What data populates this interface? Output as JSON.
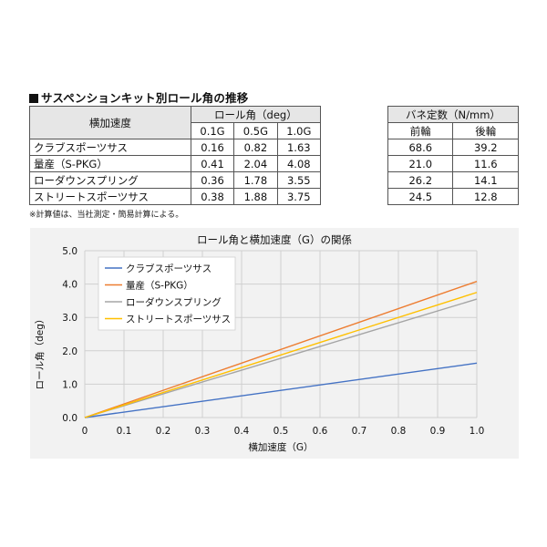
{
  "page": {
    "title": "サスペンションキット別ロール角の推移",
    "note": "※計算値は、当社測定・簡易計算による。"
  },
  "roll_table": {
    "corner_header": "横加速度",
    "group_header": "ロール角（deg）",
    "columns": [
      "0.1G",
      "0.5G",
      "1.0G"
    ],
    "rows": [
      {
        "name": "クラブスポーツサス",
        "values": [
          "0.16",
          "0.82",
          "1.63"
        ]
      },
      {
        "name": "量産（S-PKG）",
        "values": [
          "0.41",
          "2.04",
          "4.08"
        ]
      },
      {
        "name": "ローダウンスプリング",
        "values": [
          "0.36",
          "1.78",
          "3.55"
        ]
      },
      {
        "name": "ストリートスポーツサス",
        "values": [
          "0.38",
          "1.88",
          "3.75"
        ]
      }
    ]
  },
  "spring_table": {
    "header": "バネ定数（N/mm）",
    "columns": [
      "前輪",
      "後輪"
    ],
    "rows": [
      [
        "68.6",
        "39.2"
      ],
      [
        "21.0",
        "11.6"
      ],
      [
        "26.2",
        "14.1"
      ],
      [
        "24.5",
        "12.8"
      ]
    ]
  },
  "chart_data": {
    "type": "line",
    "title": "ロール角と横加速度（G）の関係",
    "xlabel": "横加速度（G）",
    "ylabel": "ロール角（deg）",
    "xlim": [
      0,
      1.0
    ],
    "ylim": [
      0,
      5.0
    ],
    "xticks": [
      "0",
      "0.1",
      "0.2",
      "0.3",
      "0.4",
      "0.5",
      "0.6",
      "0.7",
      "0.8",
      "0.9",
      "1.0"
    ],
    "yticks": [
      "0.0",
      "1.0",
      "2.0",
      "3.0",
      "4.0",
      "5.0"
    ],
    "grid": true,
    "legend_position": "top-left",
    "series": [
      {
        "name": "クラブスポーツサス",
        "color": "#4472c4",
        "x": [
          0,
          1.0
        ],
        "y": [
          0,
          1.63
        ]
      },
      {
        "name": "量産（S-PKG）",
        "color": "#ed7d31",
        "x": [
          0,
          1.0
        ],
        "y": [
          0,
          4.08
        ]
      },
      {
        "name": "ローダウンスプリング",
        "color": "#a5a5a5",
        "x": [
          0,
          1.0
        ],
        "y": [
          0,
          3.55
        ]
      },
      {
        "name": "ストリートスポーツサス",
        "color": "#ffc000",
        "x": [
          0,
          1.0
        ],
        "y": [
          0,
          3.75
        ]
      }
    ]
  }
}
